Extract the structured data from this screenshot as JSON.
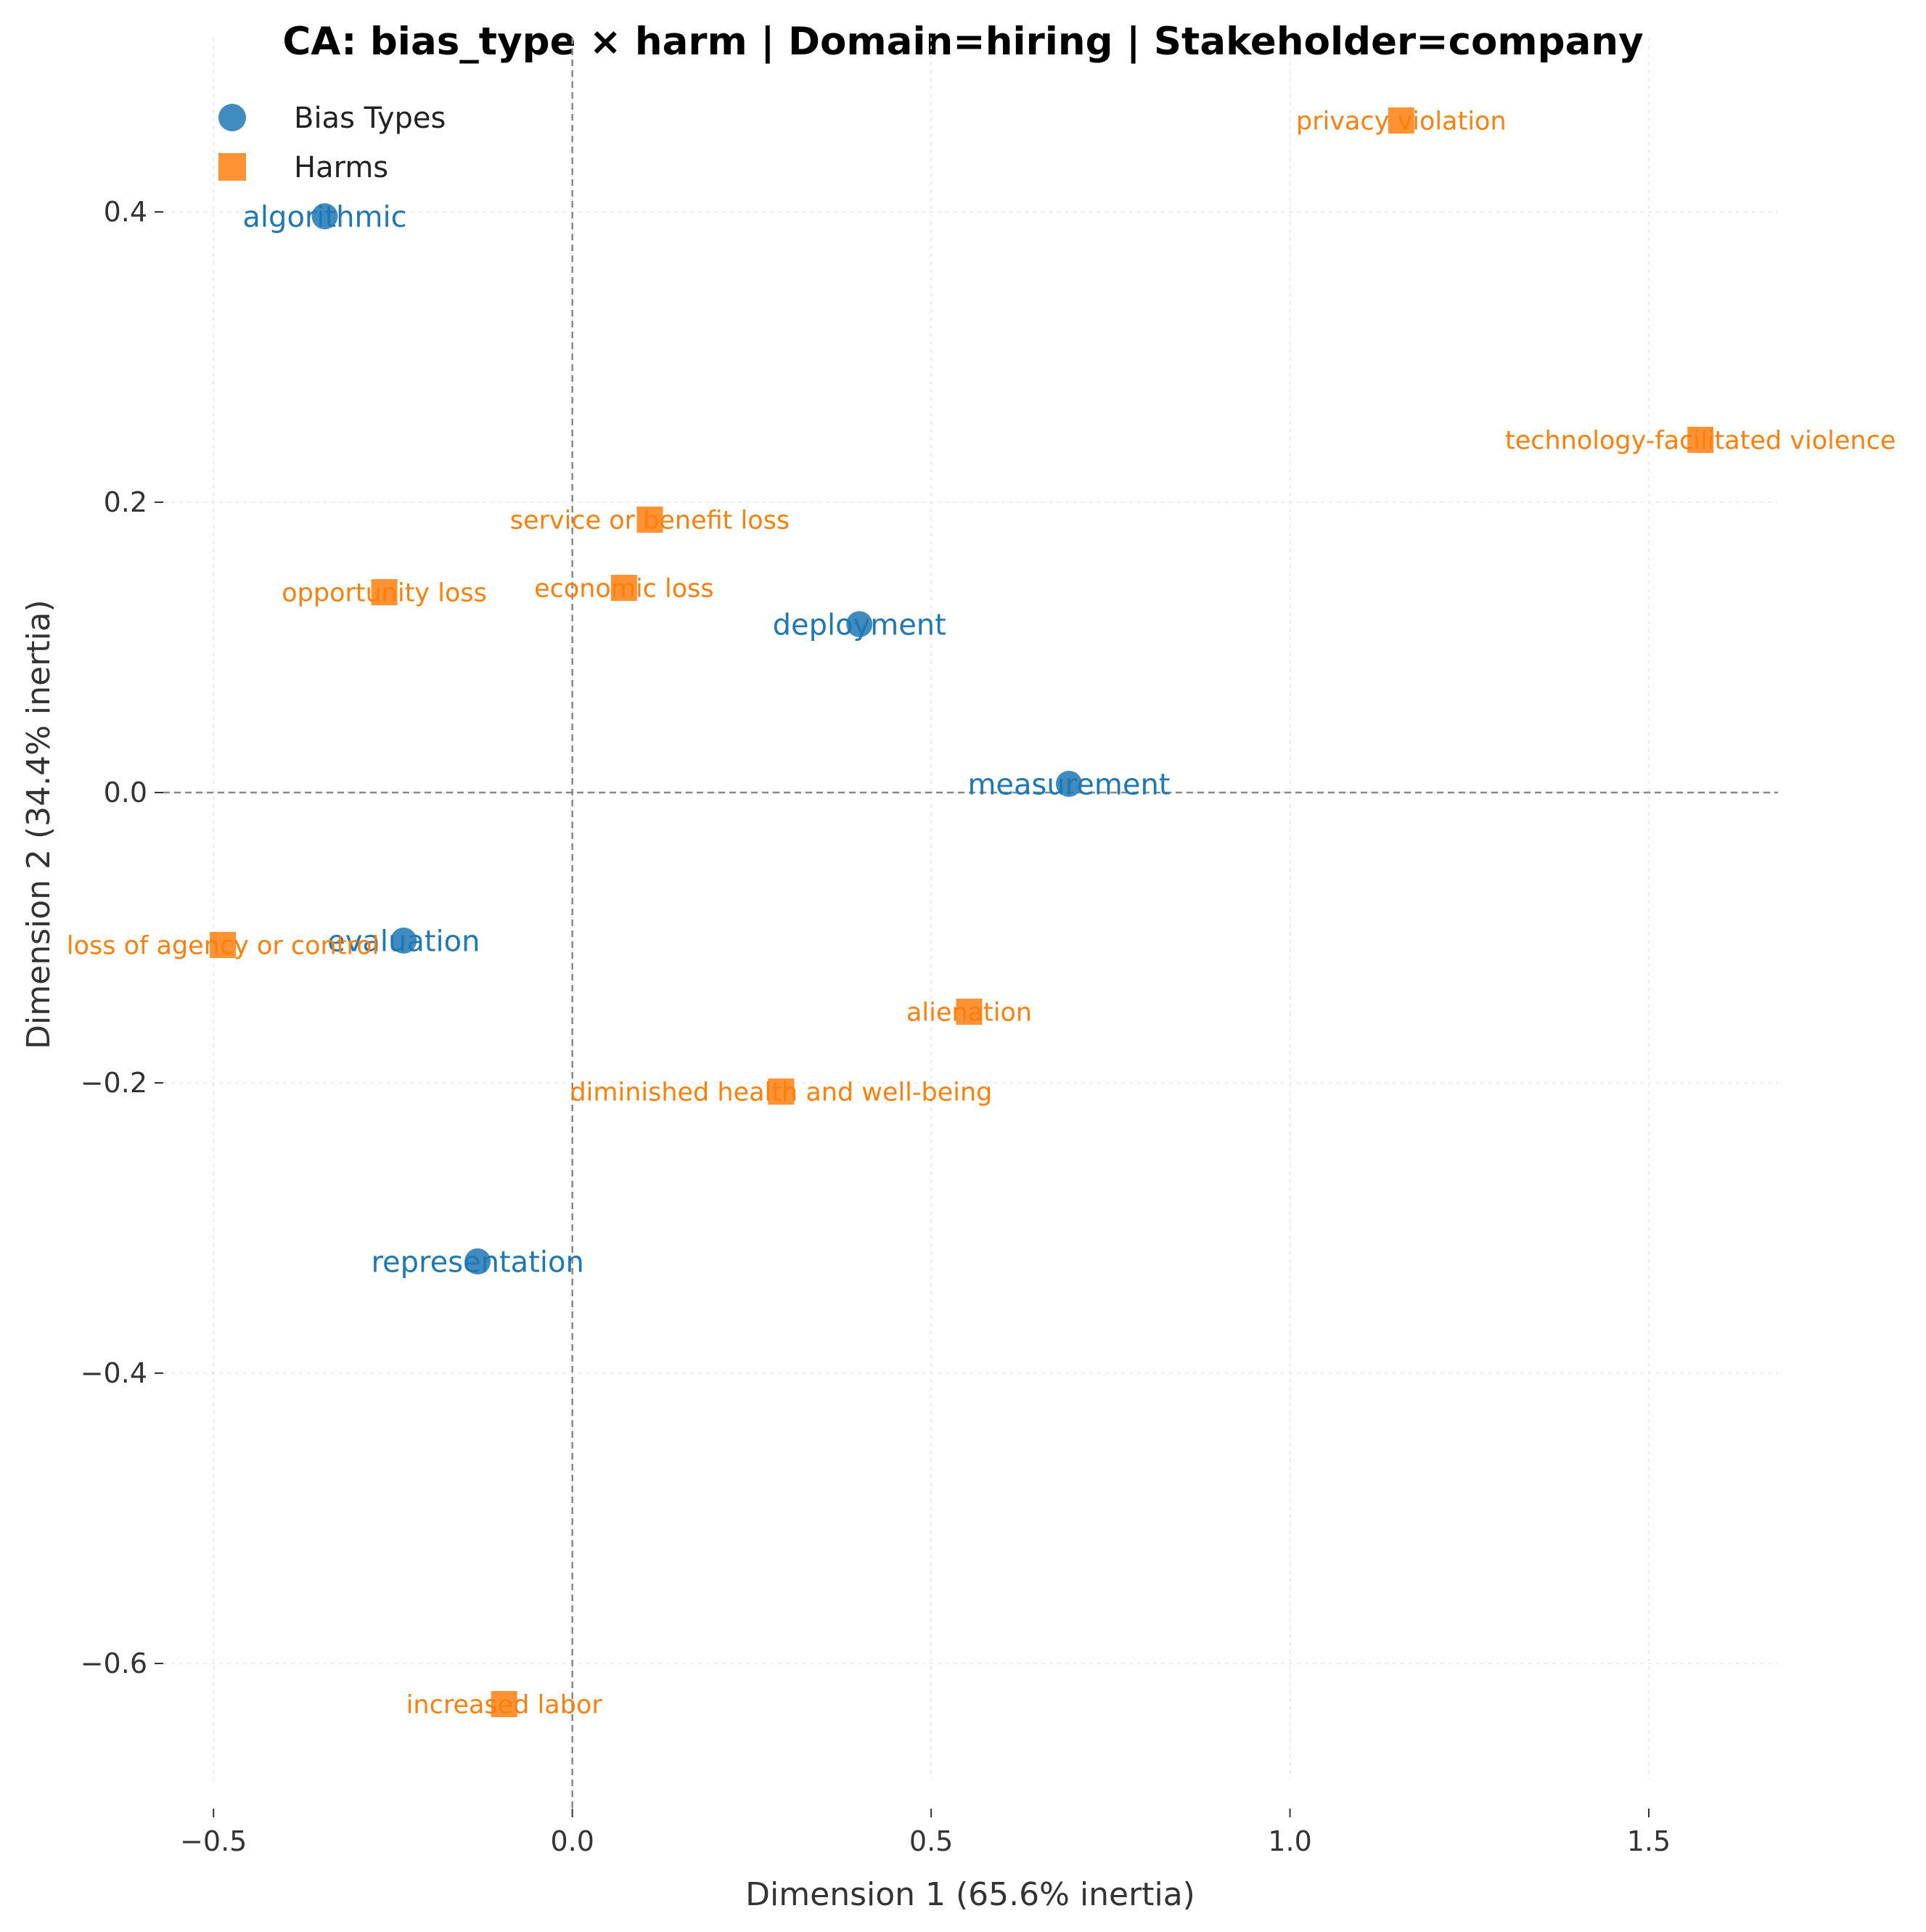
{
  "chart_data": {
    "type": "scatter",
    "title": "CA: bias_type × harm | Domain=hiring | Stakeholder=company",
    "xlabel": "Dimension 1 (65.6% inertia)",
    "ylabel": "Dimension 2 (34.4% inertia)",
    "xlim": [
      -0.57,
      1.68
    ],
    "ylim": [
      -0.7,
      0.52
    ],
    "xticks": [
      -0.5,
      0.0,
      0.5,
      1.0,
      1.5
    ],
    "yticks": [
      -0.6,
      -0.4,
      -0.2,
      0.0,
      0.2,
      0.4
    ],
    "xtick_labels": [
      "−0.5",
      "0.0",
      "0.5",
      "1.0",
      "1.5"
    ],
    "ytick_labels": [
      "−0.6",
      "−0.4",
      "−0.2",
      "0.0",
      "0.2",
      "0.4"
    ],
    "grid": true,
    "reference_lines": {
      "x": 0.0,
      "y": 0.0
    },
    "legend_position": "top-left",
    "series": [
      {
        "name": "Bias Types",
        "marker": "circle",
        "color": "#1f77b4",
        "points": [
          {
            "label": "algorithmic",
            "x": -0.345,
            "y": 0.397
          },
          {
            "label": "deployment",
            "x": 0.4,
            "y": 0.116
          },
          {
            "label": "measurement",
            "x": 0.692,
            "y": 0.006
          },
          {
            "label": "evaluation",
            "x": -0.235,
            "y": -0.102
          },
          {
            "label": "representation",
            "x": -0.132,
            "y": -0.323
          }
        ]
      },
      {
        "name": "Harms",
        "marker": "square",
        "color": "#ff7f0e",
        "points": [
          {
            "label": "privacy violation",
            "x": 1.155,
            "y": 0.463
          },
          {
            "label": "technology-facilitated violence",
            "x": 1.572,
            "y": 0.243
          },
          {
            "label": "service or benefit loss",
            "x": 0.108,
            "y": 0.188
          },
          {
            "label": "opportunity loss",
            "x": -0.262,
            "y": 0.138
          },
          {
            "label": "economic loss",
            "x": 0.072,
            "y": 0.141
          },
          {
            "label": "loss of agency or control",
            "x": -0.487,
            "y": -0.105
          },
          {
            "label": "alienation",
            "x": 0.553,
            "y": -0.151
          },
          {
            "label": "diminished health and well-being",
            "x": 0.291,
            "y": -0.206
          },
          {
            "label": "increased labor",
            "x": -0.095,
            "y": -0.628
          }
        ]
      }
    ]
  }
}
